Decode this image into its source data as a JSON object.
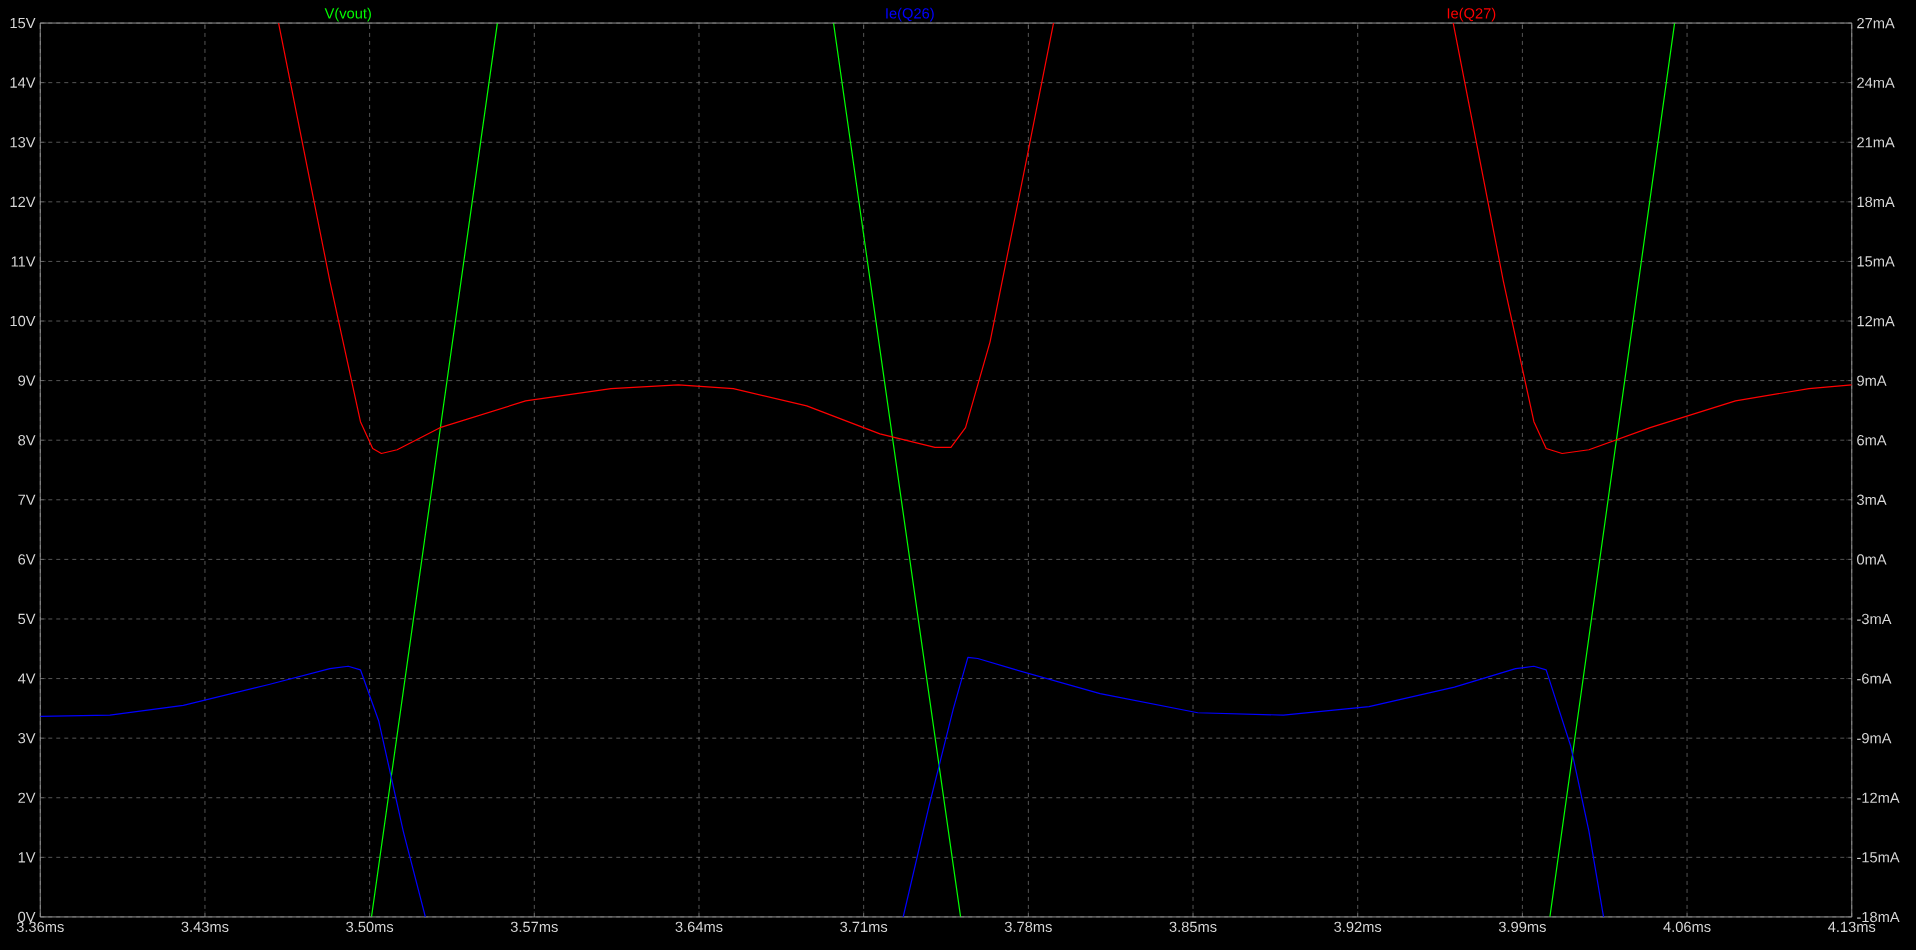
{
  "chart_data": {
    "type": "line",
    "xlim": [
      3.36,
      4.13
    ],
    "xticks": [
      {
        "value": 3.36,
        "label": "3.36ms"
      },
      {
        "value": 3.43,
        "label": "3.43ms"
      },
      {
        "value": 3.5,
        "label": "3.50ms"
      },
      {
        "value": 3.57,
        "label": "3.57ms"
      },
      {
        "value": 3.64,
        "label": "3.64ms"
      },
      {
        "value": 3.71,
        "label": "3.71ms"
      },
      {
        "value": 3.78,
        "label": "3.78ms"
      },
      {
        "value": 3.85,
        "label": "3.85ms"
      },
      {
        "value": 3.92,
        "label": "3.92ms"
      },
      {
        "value": 3.99,
        "label": "3.99ms"
      },
      {
        "value": 4.06,
        "label": "4.06ms"
      },
      {
        "value": 4.13,
        "label": "4.13ms"
      }
    ],
    "ylim": [
      0,
      15
    ],
    "yticks": [
      {
        "value": 0,
        "label": "0V"
      },
      {
        "value": 1,
        "label": "1V"
      },
      {
        "value": 2,
        "label": "2V"
      },
      {
        "value": 3,
        "label": "3V"
      },
      {
        "value": 4,
        "label": "4V"
      },
      {
        "value": 5,
        "label": "5V"
      },
      {
        "value": 6,
        "label": "6V"
      },
      {
        "value": 7,
        "label": "7V"
      },
      {
        "value": 8,
        "label": "8V"
      },
      {
        "value": 9,
        "label": "9V"
      },
      {
        "value": 10,
        "label": "10V"
      },
      {
        "value": 11,
        "label": "11V"
      },
      {
        "value": 12,
        "label": "12V"
      },
      {
        "value": 13,
        "label": "13V"
      },
      {
        "value": 14,
        "label": "14V"
      },
      {
        "value": 15,
        "label": "15V"
      }
    ],
    "y2lim": [
      -18,
      27
    ],
    "y2ticks": [
      {
        "value": -18,
        "label": "-18mA"
      },
      {
        "value": -15,
        "label": "-15mA"
      },
      {
        "value": -12,
        "label": "-12mA"
      },
      {
        "value": -9,
        "label": "-9mA"
      },
      {
        "value": -6,
        "label": "-6mA"
      },
      {
        "value": -3,
        "label": "-3mA"
      },
      {
        "value": 0,
        "label": "0mA"
      },
      {
        "value": 3,
        "label": "3mA"
      },
      {
        "value": 6,
        "label": "6mA"
      },
      {
        "value": 9,
        "label": "9mA"
      },
      {
        "value": 12,
        "label": "12mA"
      },
      {
        "value": 15,
        "label": "15mA"
      },
      {
        "value": 18,
        "label": "18mA"
      },
      {
        "value": 21,
        "label": "21mA"
      },
      {
        "value": 24,
        "label": "24mA"
      },
      {
        "value": 27,
        "label": "27mA"
      }
    ],
    "grid": true,
    "series": [
      {
        "name": "V(vout)",
        "color": "#00ff00",
        "x": [
          3.5008,
          3.5543,
          3.6258,
          3.6972,
          3.7512,
          3.8765,
          4.0017,
          4.0547
        ],
        "values": [
          0,
          15,
          null,
          15,
          0,
          null,
          0,
          15
        ]
      },
      {
        "name": "Ie(Q26)",
        "color": "#0000ff",
        "axis": "y2",
        "x": [
          3.36,
          3.3896,
          3.4208,
          3.4572,
          3.4831,
          3.4909,
          3.4961,
          3.5039,
          3.5143,
          3.5237,
          3.63,
          3.7268,
          3.7377,
          3.7481,
          3.7543,
          3.7585,
          3.7741,
          3.8105,
          3.852,
          3.8884,
          3.9248,
          3.9611,
          3.9871,
          3.9949,
          4.0001,
          4.0105,
          4.0183,
          4.0245
        ],
        "values": [
          -7.9,
          -7.84,
          -7.35,
          -6.3,
          -5.5,
          -5.38,
          -5.56,
          -8.15,
          -13.69,
          -18,
          null,
          -18,
          -12.46,
          -7.53,
          -4.93,
          -4.99,
          -5.54,
          -6.76,
          -7.72,
          -7.84,
          -7.41,
          -6.43,
          -5.5,
          -5.38,
          -5.56,
          -9.38,
          -13.69,
          -18
        ]
      },
      {
        "name": "Ie(Q27)",
        "color": "#ff0000",
        "axis": "y2",
        "x": [
          3.4613,
          3.4831,
          3.4961,
          3.5013,
          3.505,
          3.5117,
          3.5299,
          3.5663,
          3.6026,
          3.6312,
          3.6546,
          3.6858,
          3.7169,
          3.7403,
          3.7471,
          3.7533,
          3.7637,
          3.7793,
          3.7907,
          3.876,
          3.9606,
          3.9819,
          3.9949,
          4.0001,
          4.0069,
          4.0183,
          4.0443,
          4.0806,
          4.1118,
          4.13
        ],
        "values": [
          27,
          14.01,
          6.93,
          5.58,
          5.33,
          5.52,
          6.63,
          7.98,
          8.6,
          8.79,
          8.6,
          7.73,
          6.32,
          5.64,
          5.64,
          6.63,
          10.94,
          20.17,
          27,
          null,
          27,
          14.01,
          6.93,
          5.58,
          5.33,
          5.52,
          6.63,
          7.98,
          8.6,
          8.79
        ]
      }
    ]
  }
}
